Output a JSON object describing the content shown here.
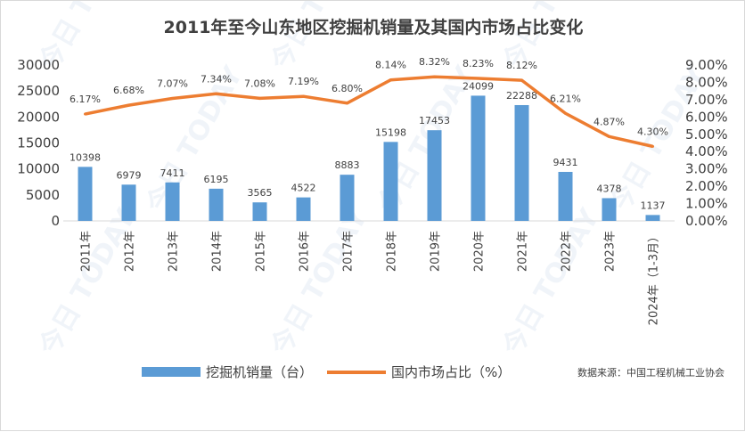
{
  "chart_data": {
    "type": "bar+line",
    "title": "2011年至今山东地区挖掘机销量及其国内市场占比变化",
    "categories": [
      "2011年",
      "2012年",
      "2013年",
      "2014年",
      "2015年",
      "2016年",
      "2017年",
      "2018年",
      "2019年",
      "2020年",
      "2021年",
      "2022年",
      "2023年",
      "2024年（1-3月）"
    ],
    "series": [
      {
        "name": "挖掘机销量（台）",
        "type": "bar",
        "axis": "left",
        "color": "#5b9bd5",
        "values": [
          10398,
          6979,
          7411,
          6195,
          3565,
          4522,
          8883,
          15198,
          17453,
          24099,
          22288,
          9431,
          4378,
          1137
        ],
        "labels": [
          "10398",
          "6979",
          "7411",
          "6195",
          "3565",
          "4522",
          "8883",
          "15198",
          "17453",
          "24099",
          "22288",
          "9431",
          "4378",
          "1137"
        ]
      },
      {
        "name": "国内市场占比（%）",
        "type": "line",
        "axis": "right",
        "color": "#ed7d31",
        "values": [
          6.17,
          6.68,
          7.07,
          7.34,
          7.08,
          7.19,
          6.8,
          8.14,
          8.32,
          8.23,
          8.12,
          6.21,
          4.87,
          4.3
        ],
        "labels": [
          "6.17%",
          "6.68%",
          "7.07%",
          "7.34%",
          "7.08%",
          "7.19%",
          "6.80%",
          "8.14%",
          "8.32%",
          "8.23%",
          "8.12%",
          "6.21%",
          "4.87%",
          "4.30%"
        ]
      }
    ],
    "y_left": {
      "min": 0,
      "max": 30000,
      "ticks": [
        "0",
        "5000",
        "10000",
        "15000",
        "20000",
        "25000",
        "30000"
      ]
    },
    "y_right": {
      "min": 0,
      "max": 9,
      "ticks": [
        "0.00%",
        "1.00%",
        "2.00%",
        "3.00%",
        "4.00%",
        "5.00%",
        "6.00%",
        "7.00%",
        "8.00%",
        "9.00%"
      ]
    },
    "legend": {
      "position": "bottom",
      "items": [
        "挖掘机销量（台）",
        "国内市场占比（%）"
      ]
    },
    "source": "数据来源：中国工程机械工业协会",
    "watermark": "今日 TODAY"
  }
}
